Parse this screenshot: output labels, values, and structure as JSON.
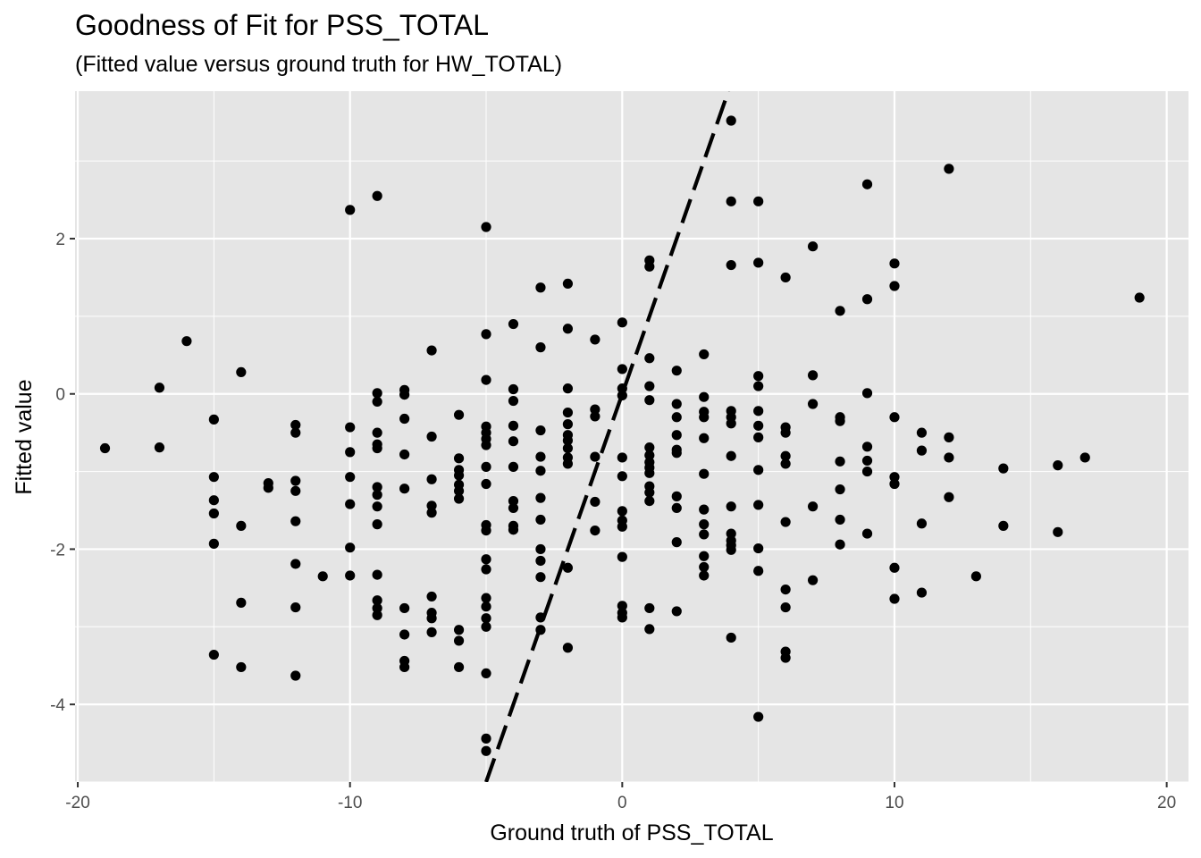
{
  "chart_data": {
    "type": "scatter",
    "title": "Goodness of Fit for PSS_TOTAL",
    "subtitle": "(Fitted value versus ground truth for HW_TOTAL)",
    "xlabel": "Ground truth of PSS_TOTAL",
    "ylabel": "Fitted value",
    "xlim": [
      -20.1,
      20.8
    ],
    "ylim": [
      -5.0,
      3.9
    ],
    "x_ticks": [
      -20,
      -10,
      0,
      10,
      20
    ],
    "x_tick_labels": [
      "-20",
      "-10",
      "0",
      "10",
      "20"
    ],
    "y_ticks": [
      -4,
      -2,
      0,
      2
    ],
    "y_tick_labels": [
      "-4",
      "-2",
      "0",
      "2"
    ],
    "grid": true,
    "background": "#e5e5e5",
    "grid_color": "#ffffff",
    "point_color": "#000000",
    "reference_line": {
      "style": "dashed",
      "color": "#000000",
      "slope": 1,
      "intercept": 0
    },
    "points": [
      [
        -19,
        -0.7
      ],
      [
        -17,
        0.08
      ],
      [
        -17,
        -0.69
      ],
      [
        -16,
        0.68
      ],
      [
        -15,
        -0.33
      ],
      [
        -15,
        -1.07
      ],
      [
        -15,
        -1.37
      ],
      [
        -15,
        -1.54
      ],
      [
        -15,
        -1.93
      ],
      [
        -15,
        -3.36
      ],
      [
        -14,
        0.28
      ],
      [
        -14,
        -1.7
      ],
      [
        -14,
        -2.69
      ],
      [
        -14,
        -3.52
      ],
      [
        -13,
        -1.15
      ],
      [
        -13,
        -1.21
      ],
      [
        -12,
        -0.4
      ],
      [
        -12,
        -0.5
      ],
      [
        -12,
        -1.12
      ],
      [
        -12,
        -1.25
      ],
      [
        -12,
        -1.64
      ],
      [
        -12,
        -2.19
      ],
      [
        -12,
        -2.75
      ],
      [
        -12,
        -3.63
      ],
      [
        -11,
        -2.35
      ],
      [
        -10,
        2.37
      ],
      [
        -10,
        -0.43
      ],
      [
        -10,
        -0.75
      ],
      [
        -10,
        -1.07
      ],
      [
        -10,
        -1.42
      ],
      [
        -10,
        -1.98
      ],
      [
        -10,
        -2.34
      ],
      [
        -9,
        2.55
      ],
      [
        -9,
        0.01
      ],
      [
        -9,
        -0.1
      ],
      [
        -9,
        -0.5
      ],
      [
        -9,
        -0.65
      ],
      [
        -9,
        -0.7
      ],
      [
        -9,
        -1.2
      ],
      [
        -9,
        -1.3
      ],
      [
        -9,
        -1.45
      ],
      [
        -9,
        -1.68
      ],
      [
        -9,
        -2.33
      ],
      [
        -9,
        -2.66
      ],
      [
        -9,
        -2.76
      ],
      [
        -9,
        -2.85
      ],
      [
        -8,
        0.05
      ],
      [
        -8,
        -0.01
      ],
      [
        -8,
        -0.32
      ],
      [
        -8,
        -0.78
      ],
      [
        -8,
        -1.22
      ],
      [
        -8,
        -2.76
      ],
      [
        -8,
        -3.1
      ],
      [
        -8,
        -3.44
      ],
      [
        -8,
        -3.52
      ],
      [
        -7,
        0.56
      ],
      [
        -7,
        -0.55
      ],
      [
        -7,
        -1.1
      ],
      [
        -7,
        -1.44
      ],
      [
        -7,
        -1.53
      ],
      [
        -7,
        -2.61
      ],
      [
        -7,
        -2.82
      ],
      [
        -7,
        -2.89
      ],
      [
        -7,
        -3.07
      ],
      [
        -6,
        -0.27
      ],
      [
        -6,
        -0.83
      ],
      [
        -6,
        -0.98
      ],
      [
        -6,
        -1.05
      ],
      [
        -6,
        -1.17
      ],
      [
        -6,
        -1.25
      ],
      [
        -6,
        -1.35
      ],
      [
        -6,
        -3.04
      ],
      [
        -6,
        -3.18
      ],
      [
        -6,
        -3.52
      ],
      [
        -5,
        2.15
      ],
      [
        -5,
        0.77
      ],
      [
        -5,
        0.18
      ],
      [
        -5,
        -0.42
      ],
      [
        -5,
        -0.5
      ],
      [
        -5,
        -0.58
      ],
      [
        -5,
        -0.66
      ],
      [
        -5,
        -0.94
      ],
      [
        -5,
        -1.16
      ],
      [
        -5,
        -1.69
      ],
      [
        -5,
        -1.76
      ],
      [
        -5,
        -2.13
      ],
      [
        -5,
        -2.26
      ],
      [
        -5,
        -2.63
      ],
      [
        -5,
        -2.74
      ],
      [
        -5,
        -2.89
      ],
      [
        -5,
        -3.0
      ],
      [
        -5,
        -3.6
      ],
      [
        -5,
        -4.44
      ],
      [
        -5,
        -4.6
      ],
      [
        -4,
        0.9
      ],
      [
        -4,
        0.06
      ],
      [
        -4,
        -0.09
      ],
      [
        -4,
        -0.41
      ],
      [
        -4,
        -0.61
      ],
      [
        -4,
        -0.94
      ],
      [
        -4,
        -1.38
      ],
      [
        -4,
        -1.47
      ],
      [
        -4,
        -1.7
      ],
      [
        -4,
        -1.75
      ],
      [
        -3,
        1.37
      ],
      [
        -3,
        0.6
      ],
      [
        -3,
        -0.47
      ],
      [
        -3,
        -0.81
      ],
      [
        -3,
        -0.99
      ],
      [
        -3,
        -1.34
      ],
      [
        -3,
        -1.62
      ],
      [
        -3,
        -2.0
      ],
      [
        -3,
        -2.15
      ],
      [
        -3,
        -2.36
      ],
      [
        -3,
        -2.88
      ],
      [
        -3,
        -3.04
      ],
      [
        -2,
        1.42
      ],
      [
        -2,
        0.84
      ],
      [
        -2,
        0.07
      ],
      [
        -2,
        -0.24
      ],
      [
        -2,
        -0.39
      ],
      [
        -2,
        -0.53
      ],
      [
        -2,
        -0.6
      ],
      [
        -2,
        -0.7
      ],
      [
        -2,
        -0.82
      ],
      [
        -2,
        -0.9
      ],
      [
        -2,
        -2.24
      ],
      [
        -2,
        -3.27
      ],
      [
        -1,
        0.7
      ],
      [
        -1,
        -0.2
      ],
      [
        -1,
        -0.29
      ],
      [
        -1,
        -0.81
      ],
      [
        -1,
        -1.39
      ],
      [
        -1,
        -1.76
      ],
      [
        0,
        0.92
      ],
      [
        0,
        0.32
      ],
      [
        0,
        0.07
      ],
      [
        0,
        -0.02
      ],
      [
        0,
        -0.82
      ],
      [
        0,
        -1.06
      ],
      [
        0,
        -1.51
      ],
      [
        0,
        -1.63
      ],
      [
        0,
        -1.71
      ],
      [
        0,
        -2.1
      ],
      [
        0,
        -2.73
      ],
      [
        0,
        -2.82
      ],
      [
        0,
        -2.88
      ],
      [
        1,
        1.72
      ],
      [
        1,
        1.64
      ],
      [
        1,
        0.46
      ],
      [
        1,
        0.1
      ],
      [
        1,
        -0.08
      ],
      [
        1,
        -0.69
      ],
      [
        1,
        -0.79
      ],
      [
        1,
        -0.88
      ],
      [
        1,
        -0.95
      ],
      [
        1,
        -1.02
      ],
      [
        1,
        -1.19
      ],
      [
        1,
        -1.27
      ],
      [
        1,
        -1.38
      ],
      [
        1,
        -2.76
      ],
      [
        1,
        -3.03
      ],
      [
        2,
        0.3
      ],
      [
        2,
        -0.13
      ],
      [
        2,
        -0.3
      ],
      [
        2,
        -0.53
      ],
      [
        2,
        -0.72
      ],
      [
        2,
        -0.76
      ],
      [
        2,
        -1.32
      ],
      [
        2,
        -1.47
      ],
      [
        2,
        -1.91
      ],
      [
        2,
        -2.8
      ],
      [
        3,
        0.51
      ],
      [
        3,
        -0.04
      ],
      [
        3,
        -0.23
      ],
      [
        3,
        -0.3
      ],
      [
        3,
        -0.57
      ],
      [
        3,
        -1.03
      ],
      [
        3,
        -1.49
      ],
      [
        3,
        -1.68
      ],
      [
        3,
        -1.81
      ],
      [
        3,
        -2.09
      ],
      [
        3,
        -2.23
      ],
      [
        3,
        -2.34
      ],
      [
        4,
        3.52
      ],
      [
        4,
        2.48
      ],
      [
        4,
        1.66
      ],
      [
        4,
        -0.22
      ],
      [
        4,
        -0.3
      ],
      [
        4,
        -0.38
      ],
      [
        4,
        -0.8
      ],
      [
        4,
        -1.45
      ],
      [
        4,
        -1.8
      ],
      [
        4,
        -1.89
      ],
      [
        4,
        -1.95
      ],
      [
        4,
        -2.01
      ],
      [
        4,
        -3.14
      ],
      [
        5,
        2.48
      ],
      [
        5,
        1.69
      ],
      [
        5,
        0.23
      ],
      [
        5,
        0.1
      ],
      [
        5,
        -0.22
      ],
      [
        5,
        -0.41
      ],
      [
        5,
        -0.56
      ],
      [
        5,
        -0.98
      ],
      [
        5,
        -1.43
      ],
      [
        5,
        -1.99
      ],
      [
        5,
        -2.28
      ],
      [
        5,
        -4.16
      ],
      [
        6,
        1.5
      ],
      [
        6,
        -0.43
      ],
      [
        6,
        -0.5
      ],
      [
        6,
        -0.8
      ],
      [
        6,
        -0.9
      ],
      [
        6,
        -1.65
      ],
      [
        6,
        -2.52
      ],
      [
        6,
        -2.75
      ],
      [
        6,
        -3.32
      ],
      [
        6,
        -3.4
      ],
      [
        7,
        1.9
      ],
      [
        7,
        0.24
      ],
      [
        7,
        -0.13
      ],
      [
        7,
        -1.45
      ],
      [
        7,
        -2.4
      ],
      [
        8,
        1.07
      ],
      [
        8,
        -0.3
      ],
      [
        8,
        -0.35
      ],
      [
        8,
        -0.87
      ],
      [
        8,
        -1.23
      ],
      [
        8,
        -1.62
      ],
      [
        8,
        -1.94
      ],
      [
        9,
        2.7
      ],
      [
        9,
        1.22
      ],
      [
        9,
        0.01
      ],
      [
        9,
        -0.68
      ],
      [
        9,
        -0.86
      ],
      [
        9,
        -1.0
      ],
      [
        9,
        -1.8
      ],
      [
        10,
        1.68
      ],
      [
        10,
        1.39
      ],
      [
        10,
        -0.3
      ],
      [
        10,
        -1.07
      ],
      [
        10,
        -1.16
      ],
      [
        10,
        -2.24
      ],
      [
        10,
        -2.64
      ],
      [
        11,
        -0.5
      ],
      [
        11,
        -0.73
      ],
      [
        11,
        -1.67
      ],
      [
        11,
        -2.56
      ],
      [
        12,
        2.9
      ],
      [
        12,
        -0.56
      ],
      [
        12,
        -0.82
      ],
      [
        12,
        -1.33
      ],
      [
        13,
        -2.35
      ],
      [
        14,
        -0.96
      ],
      [
        14,
        -1.7
      ],
      [
        16,
        -0.92
      ],
      [
        16,
        -1.78
      ],
      [
        17,
        -0.82
      ],
      [
        19,
        1.24
      ]
    ]
  }
}
